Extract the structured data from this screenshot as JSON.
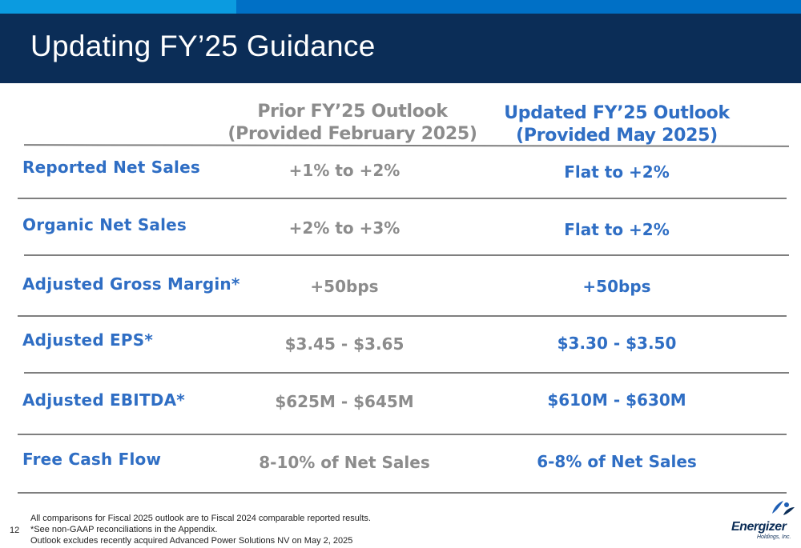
{
  "slide": {
    "title": "Updating FY’25 Guidance",
    "page_number": "12"
  },
  "table": {
    "prior_header_line1": "Prior FY’25 Outlook",
    "prior_header_line2": "(Provided February 2025)",
    "updated_header_line1": "Updated FY’25 Outlook",
    "updated_header_line2": "(Provided May 2025)",
    "rows": [
      {
        "label": "Reported Net Sales",
        "prior": "+1% to +2%",
        "updated": "Flat to +2%"
      },
      {
        "label": "Organic Net Sales",
        "prior": "+2% to +3%",
        "updated": "Flat to +2%"
      },
      {
        "label": "Adjusted Gross Margin*",
        "prior": "+50bps",
        "updated": "+50bps"
      },
      {
        "label": "Adjusted EPS*",
        "prior": "$3.45 - $3.65",
        "updated": "$3.30 - $3.50"
      },
      {
        "label": "Adjusted EBITDA*",
        "prior": "$625M - $645M",
        "updated": "$610M - $630M"
      },
      {
        "label": "Free Cash Flow",
        "prior": "8-10% of Net Sales",
        "updated": "6-8% of Net Sales"
      }
    ]
  },
  "footnotes": [
    "All comparisons for Fiscal 2025 outlook are to Fiscal 2024 comparable reported results.",
    "*See non-GAAP reconciliations in the Appendix.",
    "Outlook excludes recently acquired Advanced Power Solutions NV on May 2, 2025"
  ],
  "logo": {
    "name": "Energizer",
    "subtitle": "Holdings, Inc."
  },
  "colors": {
    "header_bg": "#0b2d57",
    "accent_light": "#0b9be0",
    "accent_mid": "#0070c6",
    "label_blue": "#2f6ec4",
    "prior_gray": "#8c8c8c"
  }
}
